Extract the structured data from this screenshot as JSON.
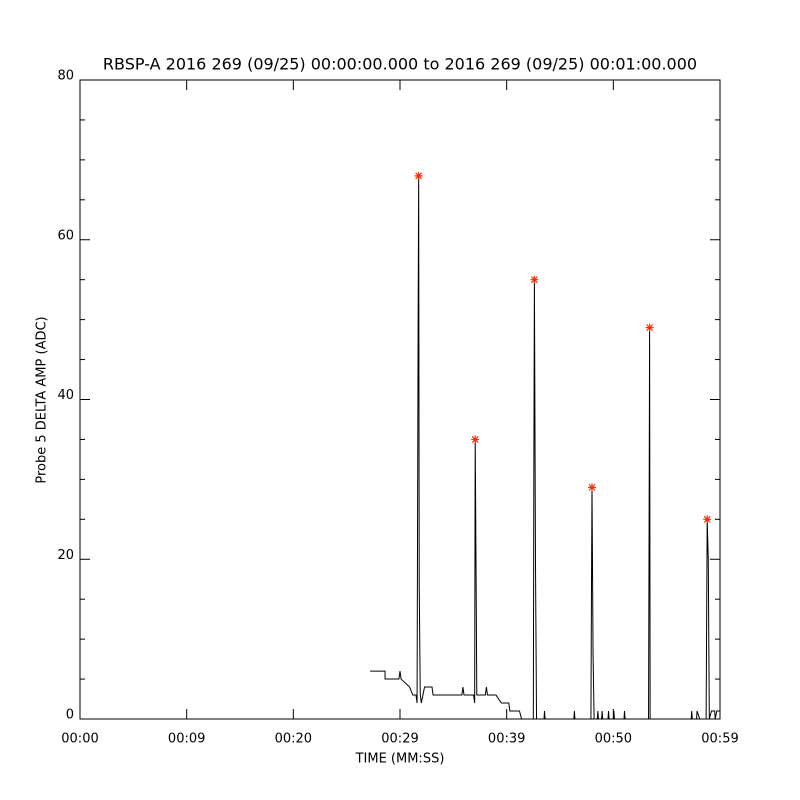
{
  "chart_data": {
    "type": "line",
    "title": "RBSP-A 2016 269 (09/25) 00:00:00.000 to 2016 269 (09/25) 00:01:00.000",
    "x_label": "TIME (MM:SS)",
    "y_label": "Probe 5 DELTA AMP (ADC)",
    "xlim": [
      0,
      60
    ],
    "ylim": [
      0,
      80
    ],
    "xticks": [
      {
        "value": 0,
        "label": "00:00"
      },
      {
        "value": 10,
        "label": "00:09"
      },
      {
        "value": 20,
        "label": "00:20"
      },
      {
        "value": 30,
        "label": "00:29"
      },
      {
        "value": 40,
        "label": "00:39"
      },
      {
        "value": 50,
        "label": "00:50"
      },
      {
        "value": 60,
        "label": "00:59"
      }
    ],
    "yticks": [
      0,
      20,
      40,
      60,
      80
    ],
    "yminorticks": [
      5,
      10,
      15,
      25,
      30,
      35,
      45,
      50,
      55,
      65,
      70,
      75
    ],
    "series": [
      {
        "color": "#000000",
        "x": [
          27.2,
          28.6,
          28.6,
          29.9,
          30.0,
          30.1,
          30.9,
          31.2,
          31.5,
          31.6,
          31.7,
          31.75,
          31.8,
          31.9,
          32.0,
          32.3,
          33.0,
          33.1,
          35.8,
          35.9,
          36.0,
          36.9,
          37.0,
          37.05,
          37.1,
          37.2,
          38.0,
          38.1,
          38.2,
          39.0,
          39.5,
          40.2,
          40.3,
          41.2,
          41.4,
          42.5,
          42.55,
          42.6,
          42.7,
          42.8,
          43.5,
          43.55,
          43.6,
          46.3,
          46.35,
          46.4,
          47.9,
          47.95,
          48.0,
          48.1,
          48.2,
          48.5,
          48.55,
          48.6,
          48.9,
          48.95,
          49.0,
          49.5,
          49.55,
          49.6,
          50.0,
          50.05,
          50.1,
          51.0,
          51.05,
          51.1,
          53.3,
          53.35,
          53.4,
          53.45,
          57.3,
          57.35,
          57.4,
          57.8,
          57.85,
          58.1,
          58.7,
          58.75,
          58.8,
          58.9,
          59.0,
          59.2,
          59.5,
          59.55,
          59.7,
          60
        ],
        "values": [
          6,
          6,
          5,
          5,
          6,
          5,
          4,
          3,
          3,
          2,
          50,
          68,
          17,
          3,
          2,
          4,
          4,
          3,
          3,
          4,
          3,
          3,
          2,
          35,
          25,
          3,
          3,
          4,
          3,
          3,
          2,
          2,
          1,
          1,
          0,
          0,
          32,
          55,
          20,
          0,
          0,
          1,
          0,
          0,
          1,
          0,
          0,
          16,
          29,
          8,
          0,
          0,
          1,
          0,
          0,
          1,
          0,
          0,
          1,
          0,
          0,
          1,
          0,
          0,
          1,
          0,
          0,
          23,
          49,
          0,
          0,
          1,
          0,
          0,
          1,
          0,
          0,
          13,
          25,
          20,
          0,
          1,
          1,
          0,
          1,
          1
        ]
      },
      {
        "color": "#ff2a00",
        "marker": "asterisk",
        "x": [
          31.75,
          37.05,
          42.6,
          48.0,
          53.4,
          58.8
        ],
        "values": [
          68,
          35,
          55,
          29,
          49,
          25
        ]
      }
    ]
  }
}
